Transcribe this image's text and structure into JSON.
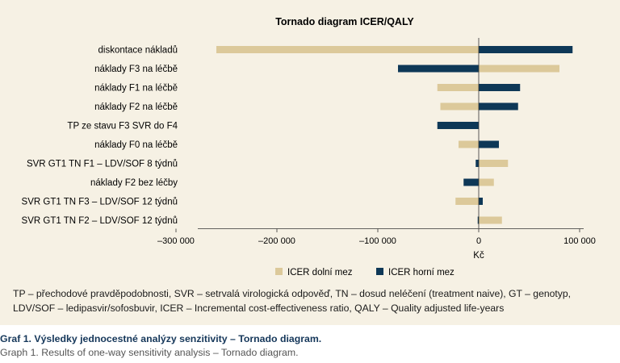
{
  "chart_data": {
    "type": "bar",
    "orientation": "horizontal",
    "title": "Tornado diagram ICER/QALY",
    "xlabel": "Kč",
    "ylabel": "",
    "xlim": [
      -300000,
      100000
    ],
    "x_ticks": [
      -300000,
      -200000,
      -100000,
      0,
      100000
    ],
    "x_tick_labels": [
      "–300 000",
      "–200 000",
      "–100 000",
      "0",
      "100 000"
    ],
    "grid": false,
    "legend_position": "bottom",
    "categories": [
      "diskontace nákladů",
      "náklady F3 na léčbě",
      "náklady F1 na léčbě",
      "náklady F2 na léčbě",
      "TP ze stavu F3 SVR do F4",
      "náklady F0 na léčbě",
      "SVR GT1 TN F1 – LDV/SOF 8 týdnů",
      "náklady F2 bez léčby",
      "SVR GT1 TN F3 – LDV/SOF 12 týdnů",
      "SVR GT1 TN F2 – LDV/SOF 12 týdnů"
    ],
    "series": [
      {
        "name": "ICER dolní mez",
        "color": "#dcc99a",
        "values": [
          -260000,
          80000,
          -41000,
          -38000,
          0,
          -20000,
          29000,
          15000,
          -23000,
          23000
        ]
      },
      {
        "name": "ICER horní mez",
        "color": "#0e3857",
        "values": [
          93000,
          -80000,
          41000,
          39000,
          -41000,
          20000,
          -3000,
          -15000,
          4000,
          -1000
        ]
      }
    ]
  },
  "footnote": "TP – přechodové pravděpodobnosti, SVR – setrvalá virologická odpověď, TN – dosud neléčení (treatment naive), GT – genotyp, LDV/SOF – ledipasvir/sofosbuvir, ICER – Incremental cost-effectiveness ratio, QALY – Quality adjusted life-years",
  "caption": {
    "cz": "Graf 1. Výsledky jednocestné analýzy senzitivity – Tornado diagram.",
    "en": "Graph 1. Results of one-way sensitivity analysis – Tornado diagram."
  }
}
